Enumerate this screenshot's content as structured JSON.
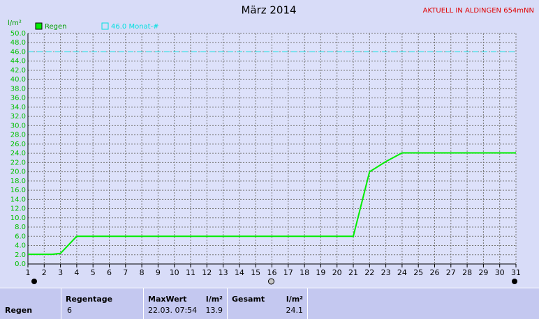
{
  "chart_data": {
    "type": "line",
    "title": "März 2014",
    "station": "AKTUELL IN ALDINGEN 654mNN",
    "y_label": "l/m²",
    "series": [
      {
        "name": "Regen",
        "color": "#00ee00",
        "x": [
          1,
          2.5,
          3,
          4,
          21,
          22,
          23,
          24,
          31
        ],
        "values": [
          2.1,
          2.1,
          2.3,
          6.0,
          6.0,
          20.0,
          22.2,
          24.1,
          24.1
        ]
      }
    ],
    "reference": {
      "value": 46.0,
      "label": "46.0 Monat-#",
      "color": "#00e0e0"
    },
    "xlim": [
      1,
      31
    ],
    "xticks": [
      1,
      2,
      3,
      4,
      5,
      6,
      7,
      8,
      9,
      10,
      11,
      12,
      13,
      14,
      15,
      16,
      17,
      18,
      19,
      20,
      21,
      22,
      23,
      24,
      25,
      26,
      27,
      28,
      29,
      30,
      31
    ],
    "ylim": [
      0,
      50
    ],
    "yticks": [
      {
        "value": 0,
        "label": "0.0"
      },
      {
        "value": 2,
        "label": "2.0"
      },
      {
        "value": 4,
        "label": "4.0"
      },
      {
        "value": 6,
        "label": "6.0"
      },
      {
        "value": 8,
        "label": "8.0"
      },
      {
        "value": 10,
        "label": "10.0"
      },
      {
        "value": 12,
        "label": "12.0"
      },
      {
        "value": 14,
        "label": "14.0"
      },
      {
        "value": 16,
        "label": "16.0"
      },
      {
        "value": 18,
        "label": "18.0"
      },
      {
        "value": 20,
        "label": "20.0"
      },
      {
        "value": 22,
        "label": "22.0"
      },
      {
        "value": 24,
        "label": "24.0"
      },
      {
        "value": 26,
        "label": "26.0"
      },
      {
        "value": 28,
        "label": "28.0"
      },
      {
        "value": 30,
        "label": "30.0"
      },
      {
        "value": 32,
        "label": "32.0"
      },
      {
        "value": 34,
        "label": "34.0"
      },
      {
        "value": 36,
        "label": "36.0"
      },
      {
        "value": 38,
        "label": "38.0"
      },
      {
        "value": 40,
        "label": "40.0"
      },
      {
        "value": 42,
        "label": "42.0"
      },
      {
        "value": 44,
        "label": "44.0"
      },
      {
        "value": 46,
        "label": "46.0"
      },
      {
        "value": 48,
        "label": "48.0"
      },
      {
        "value": 50,
        "label": "50.0"
      }
    ],
    "grid": true
  },
  "stats": {
    "row_label": "Regen",
    "regentage": {
      "header": "Regentage",
      "value": "6"
    },
    "maxwert": {
      "header": "MaxWert",
      "unit": "l/m²",
      "date": "22.03.  07:54",
      "value": "13.9"
    },
    "gesamt": {
      "header": "Gesamt",
      "unit": "l/m²",
      "value": "24.1"
    }
  }
}
